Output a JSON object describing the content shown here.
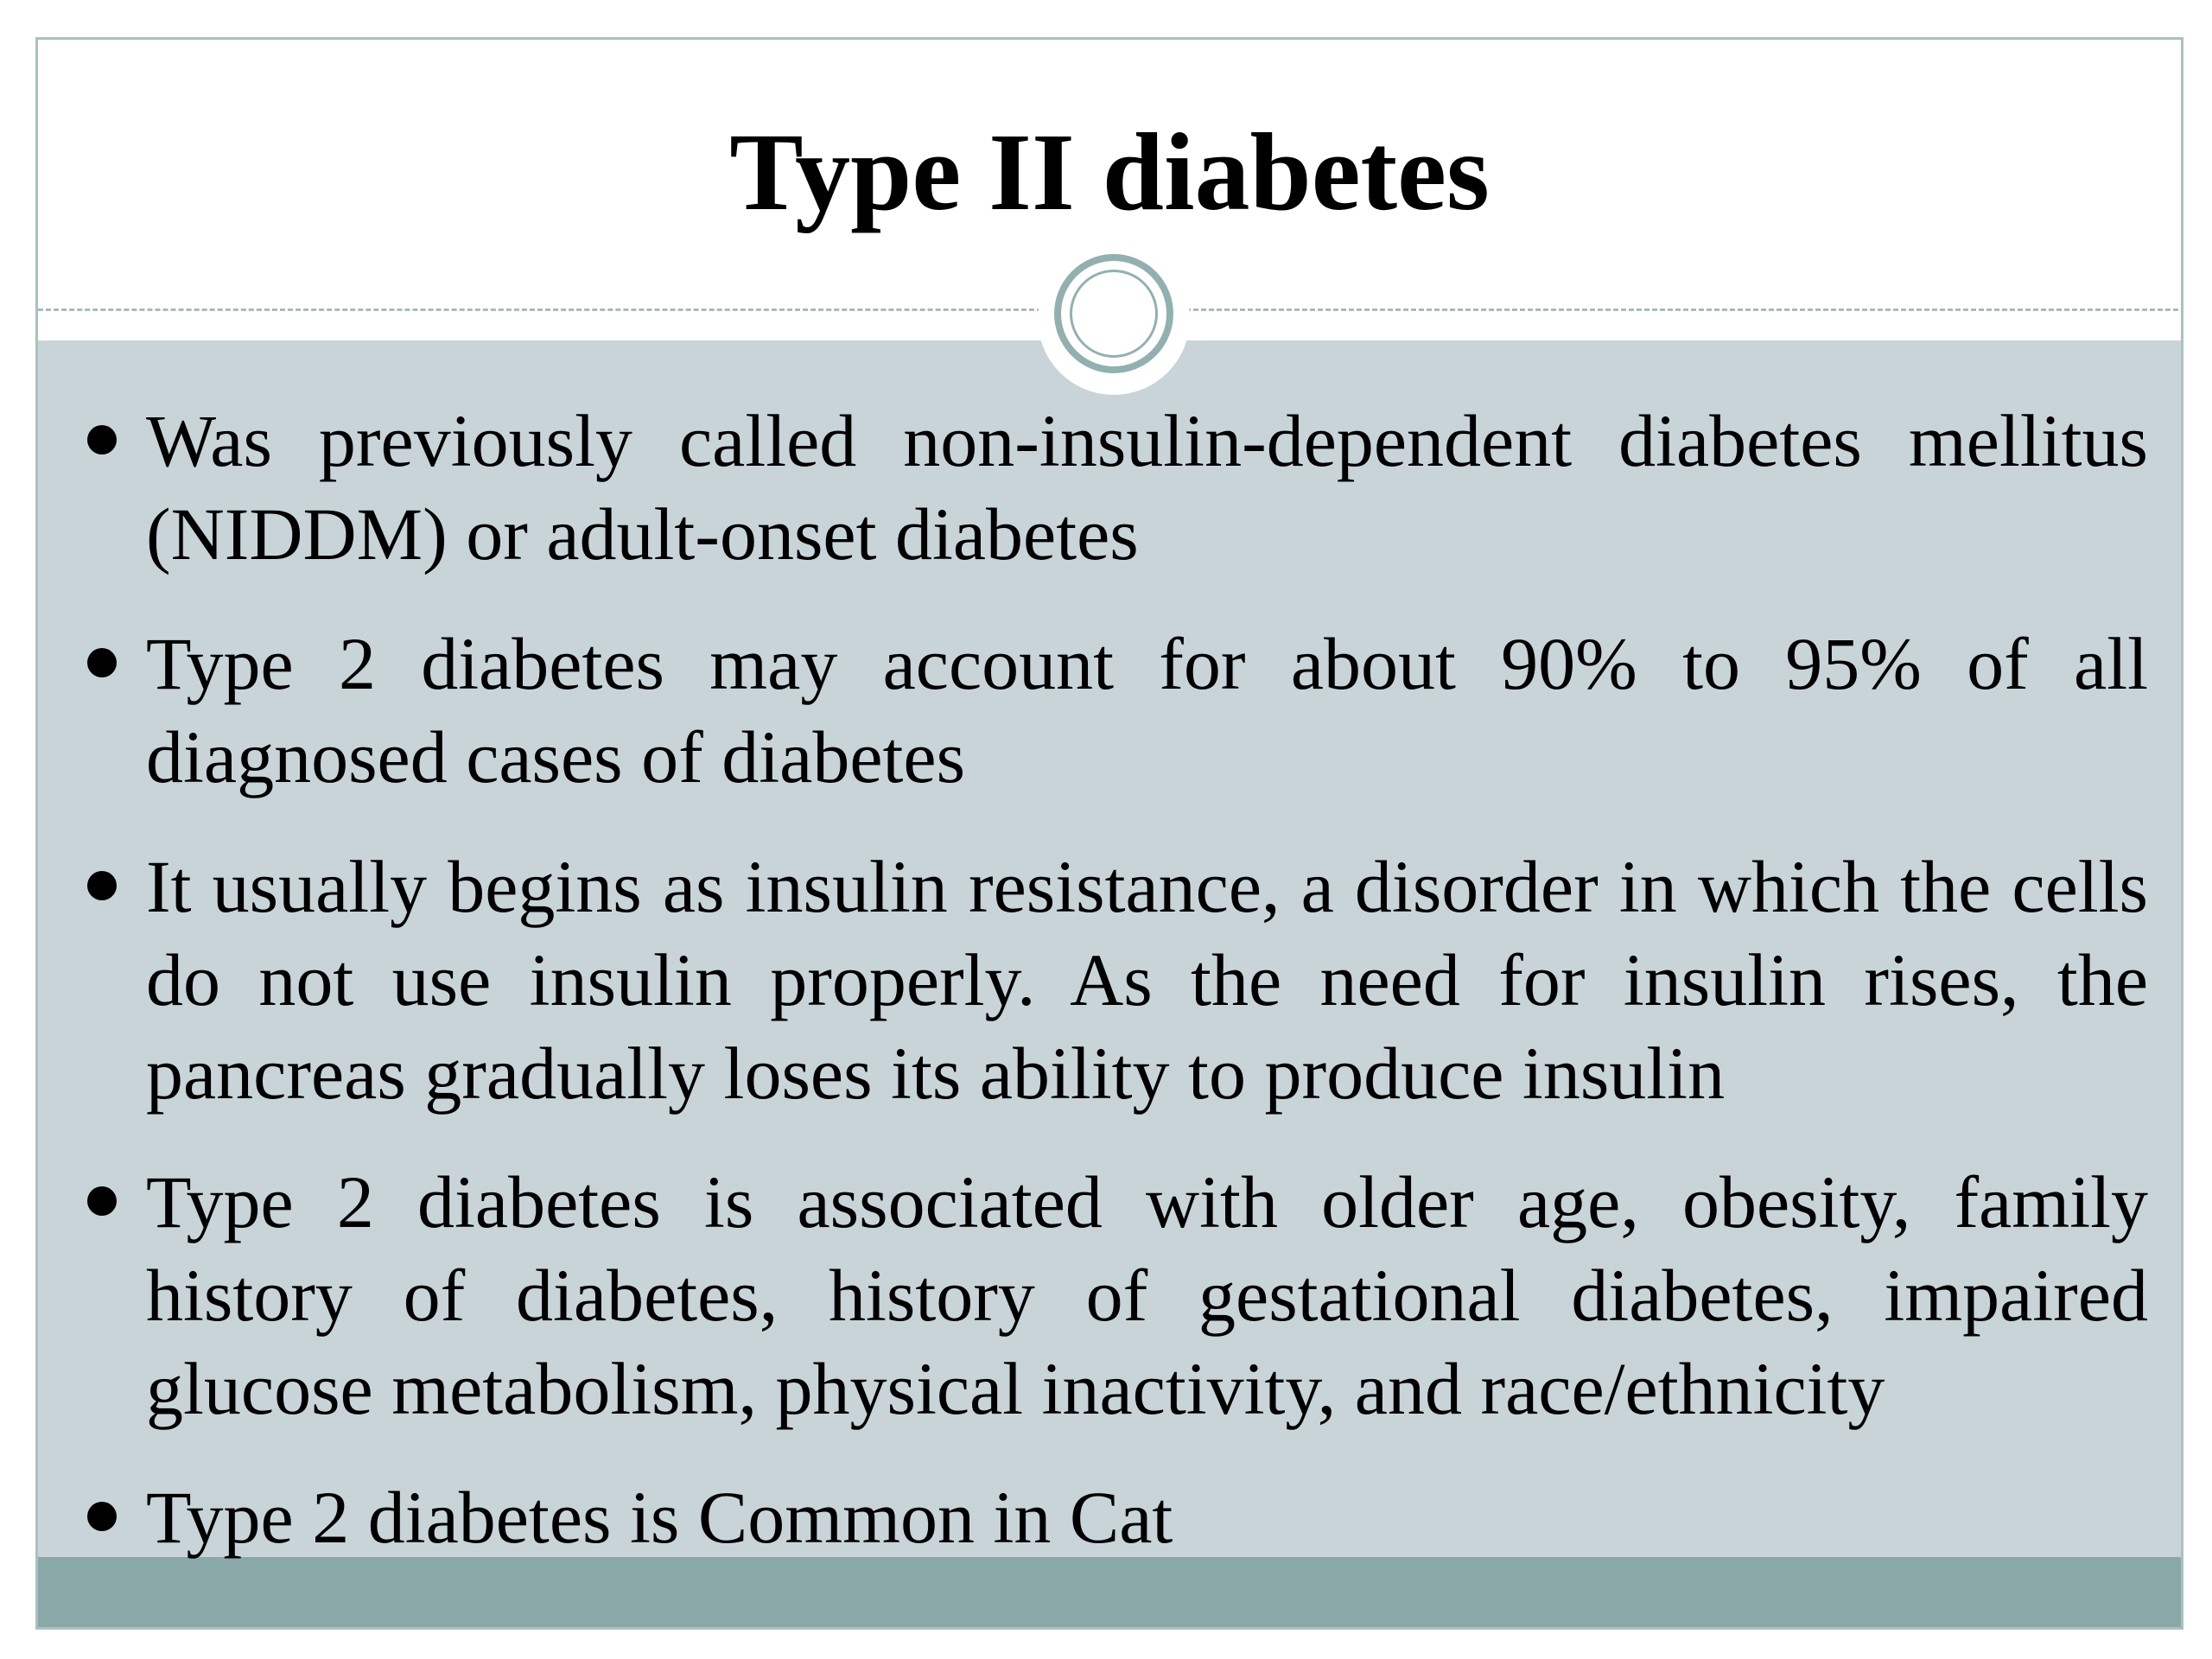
{
  "slide": {
    "title": "Type II diabetes",
    "bullets": [
      {
        "text": "Was previously called non-insulin-dependent diabetes mellitus (NIDDM) or adult-onset diabetes"
      },
      {
        "text": "Type 2 diabetes may account for about 90% to 95% of all diagnosed cases of diabetes"
      },
      {
        "text": "It usually begins as insulin resistance, a disorder in which the cells do not use insulin properly. As the need for insulin rises, the pancreas gradually loses its ability to produce insulin"
      },
      {
        "text": "Type 2 diabetes is associated with older age, obesity, family history of diabetes, history of gestational diabetes, impaired glucose metabolism, physical inactivity, and race/ethnicity"
      },
      {
        "text": "Type 2 diabetes is Common in Cat"
      }
    ]
  },
  "colors": {
    "border": "#a9c1c1",
    "body_background": "#c9d4d9",
    "footer_band": "#8ba8a9",
    "ring": "#93b0b0",
    "text": "#000000"
  }
}
